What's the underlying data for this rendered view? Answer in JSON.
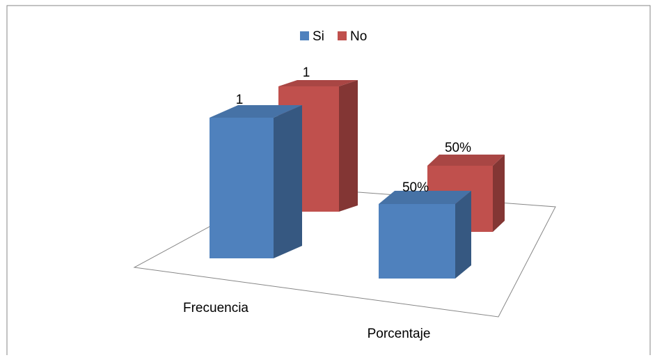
{
  "chart_data": {
    "type": "bar",
    "style": "3d-clustered-column",
    "categories": [
      "Frecuencia",
      "Porcentaje"
    ],
    "series": [
      {
        "name": "Si",
        "color": "#4F81BD",
        "values": [
          1,
          0.5
        ],
        "labels": [
          "1",
          "50%"
        ]
      },
      {
        "name": "No",
        "color": "#C0504D",
        "values": [
          1,
          0.5
        ],
        "labels": [
          "1",
          "50%"
        ]
      }
    ],
    "ylim": [
      0,
      1
    ],
    "grid": false,
    "legend_position": "top"
  }
}
